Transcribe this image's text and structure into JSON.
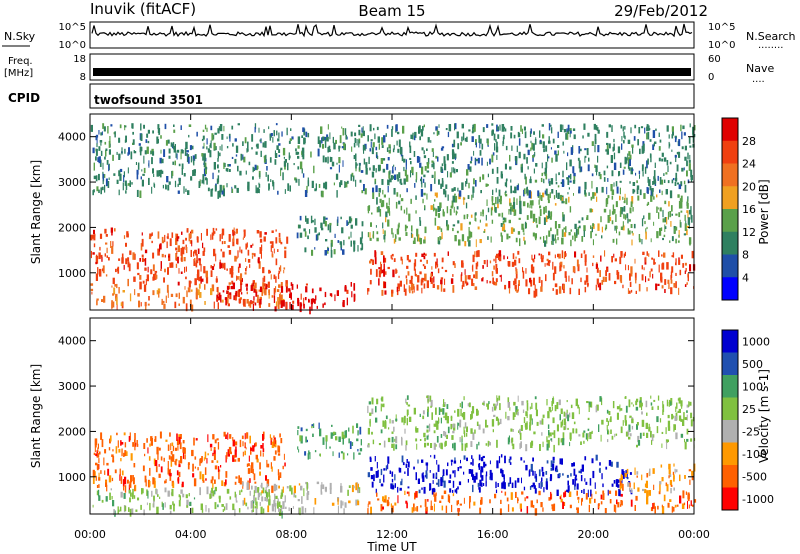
{
  "header": {
    "station": "Inuvik (fitACF)",
    "beam": "Beam 15",
    "date": "29/Feb/2012"
  },
  "panels": {
    "nsky": {
      "label": "N.Sky",
      "ticks": [
        "10^5",
        "10^0"
      ],
      "right_label": "N.Search",
      "right_ticks": [
        "10^5",
        "10^0"
      ],
      "right_dots": "........"
    },
    "freq": {
      "label_top": "Freq.",
      "label_unit": "[MHz]",
      "ticks": [
        "18",
        "8"
      ],
      "right_label": "Nave",
      "right_ticks": [
        "60",
        "0"
      ],
      "right_dots": "...."
    },
    "cpid": {
      "label": "CPID",
      "value": "twofsound 3501"
    }
  },
  "colors": {
    "power_scale": [
      "#0000ff",
      "#1f4fa8",
      "#2f8060",
      "#5aa04a",
      "#f0a020",
      "#f07020",
      "#f04010",
      "#e00000"
    ],
    "velocity_scale": [
      "#ff0000",
      "#ff6000",
      "#ff9900",
      "#b0b0b0",
      "#80c040",
      "#40a060",
      "#2050b0",
      "#0000d0"
    ]
  },
  "chart_data": [
    {
      "type": "heatmap",
      "title": "",
      "ylabel": "Slant Range [km]",
      "xlabel": "",
      "ylim": [
        180,
        4500
      ],
      "xlim": [
        "00:00",
        "24:00"
      ],
      "yticks": [
        1000,
        2000,
        3000,
        4000
      ],
      "colorbar": {
        "label": "Power [dB]",
        "ticks": [
          4,
          8,
          12,
          16,
          20,
          24,
          28
        ],
        "range": [
          0,
          32
        ]
      },
      "regions": [
        {
          "t": [
            0.0,
            7.8
          ],
          "r": [
            800,
            2000
          ],
          "value": 26
        },
        {
          "t": [
            0.0,
            7.8
          ],
          "r": [
            300,
            800
          ],
          "value": 20
        },
        {
          "t": [
            5.0,
            10.8
          ],
          "r": [
            250,
            800
          ],
          "value": 28
        },
        {
          "t": [
            8.2,
            10.8
          ],
          "r": [
            1500,
            2300
          ],
          "value": 10
        },
        {
          "t": [
            11.0,
            24.0
          ],
          "r": [
            600,
            1500
          ],
          "value": 27
        },
        {
          "t": [
            11.0,
            24.0
          ],
          "r": [
            1700,
            2800
          ],
          "value": 14
        },
        {
          "t": [
            0.0,
            24.0
          ],
          "r": [
            2800,
            4300
          ],
          "value": 10
        }
      ]
    },
    {
      "type": "heatmap",
      "title": "",
      "ylabel": "Slant Range [km]",
      "xlabel": "Time UT",
      "ylim": [
        180,
        4500
      ],
      "xlim": [
        "00:00",
        "24:00"
      ],
      "xticks": [
        "00:00",
        "04:00",
        "08:00",
        "12:00",
        "16:00",
        "20:00",
        "00:00"
      ],
      "yticks": [
        1000,
        2000,
        3000,
        4000
      ],
      "colorbar": {
        "label": "Velocity [m s-1]",
        "ticks": [
          "1000",
          "500",
          "100",
          "25",
          "-25",
          "-100",
          "-500",
          "-1000"
        ]
      },
      "regions": [
        {
          "t": [
            0.0,
            7.8
          ],
          "r": [
            800,
            2000
          ],
          "value": -400
        },
        {
          "t": [
            0.0,
            7.8
          ],
          "r": [
            250,
            800
          ],
          "value": 80
        },
        {
          "t": [
            6.0,
            10.8
          ],
          "r": [
            300,
            900
          ],
          "value": 0
        },
        {
          "t": [
            8.2,
            10.8
          ],
          "r": [
            1500,
            2200
          ],
          "value": 150
        },
        {
          "t": [
            11.0,
            21.5
          ],
          "r": [
            700,
            1500
          ],
          "value": 800
        },
        {
          "t": [
            11.0,
            24.0
          ],
          "r": [
            300,
            700
          ],
          "value": -400
        },
        {
          "t": [
            21.0,
            24.0
          ],
          "r": [
            700,
            1300
          ],
          "value": -200
        },
        {
          "t": [
            11.0,
            24.0
          ],
          "r": [
            1700,
            2800
          ],
          "value": 60
        }
      ]
    }
  ]
}
